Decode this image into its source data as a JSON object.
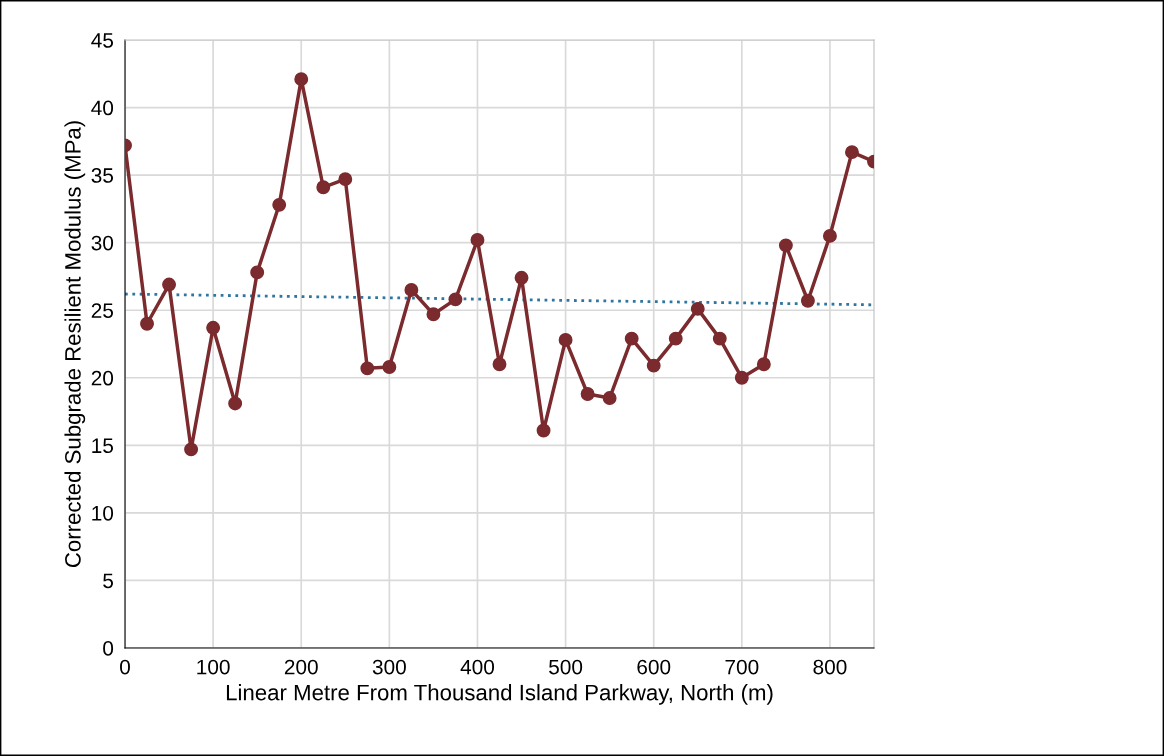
{
  "chart_data": {
    "type": "line",
    "xlabel": "Linear Metre From Thousand Island Parkway, North (m)",
    "ylabel": "Corrected Subgrade Resilient Modulus (MPa)",
    "x": [
      0,
      25,
      50,
      75,
      100,
      125,
      150,
      175,
      200,
      225,
      250,
      275,
      300,
      325,
      350,
      375,
      400,
      425,
      450,
      475,
      500,
      525,
      550,
      575,
      600,
      625,
      650,
      675,
      700,
      725,
      750,
      775,
      800,
      825,
      850
    ],
    "series": [
      {
        "color": "#7b2a2e",
        "marker": "circle",
        "line_style": "solid",
        "values": [
          37.2,
          24.0,
          26.9,
          14.7,
          23.7,
          18.1,
          27.8,
          32.8,
          42.1,
          34.1,
          34.7,
          20.7,
          20.8,
          26.5,
          24.7,
          25.8,
          30.2,
          21.0,
          27.4,
          16.1,
          22.8,
          18.8,
          18.5,
          22.9,
          20.9,
          22.9,
          25.1,
          22.9,
          20.0,
          21.0,
          29.8,
          25.7,
          30.5,
          36.7,
          36.0
        ]
      },
      {
        "type": "line",
        "color": "#2e75a0",
        "marker": "none",
        "line_style": "dotted",
        "x": [
          0,
          850
        ],
        "values": [
          26.2,
          25.4
        ]
      }
    ],
    "xlim": [
      0,
      850
    ],
    "xticks": [
      0,
      100,
      200,
      300,
      400,
      500,
      600,
      700,
      800
    ],
    "ylim": [
      0,
      45
    ],
    "yticks": [
      0,
      5,
      10,
      15,
      20,
      25,
      30,
      35,
      40,
      45
    ],
    "grid": true,
    "legend": false
  }
}
